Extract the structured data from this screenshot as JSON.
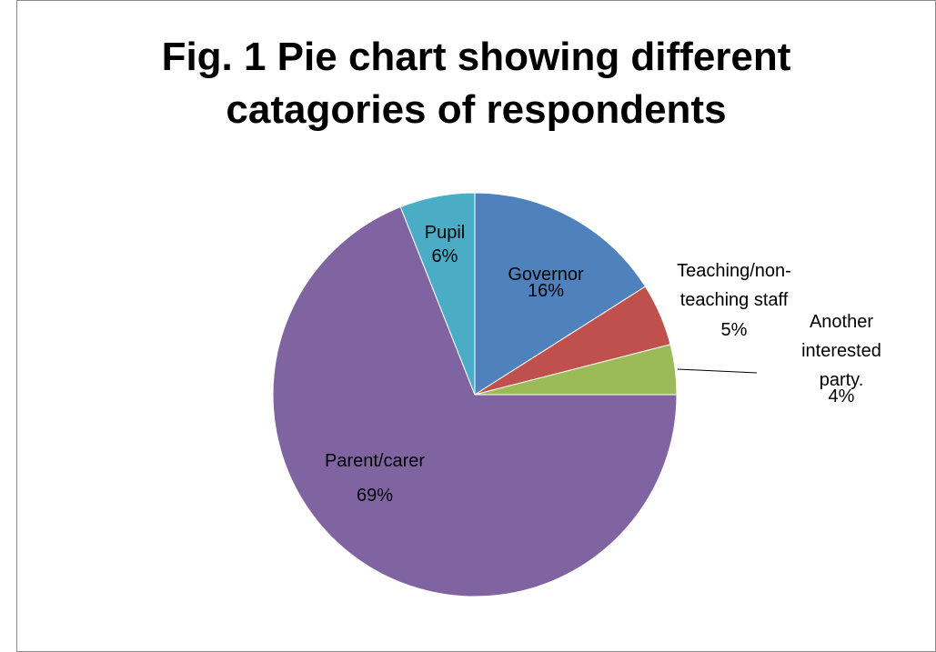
{
  "chart_data": {
    "type": "pie",
    "title": "Fig. 1 Pie chart showing different\ncatagories of respondents",
    "categories": [
      "Governor",
      "Teaching/non-\nteaching staff",
      "Another\ninterested party.",
      "Parent/carer",
      "Pupil"
    ],
    "values": [
      16,
      5,
      4,
      69,
      6
    ],
    "value_labels": [
      "16%",
      "5%",
      "4%",
      "69%",
      "6%"
    ],
    "colors": [
      "#4f81bd",
      "#c0504d",
      "#9bbb59",
      "#8064a2",
      "#4bacc6"
    ]
  }
}
